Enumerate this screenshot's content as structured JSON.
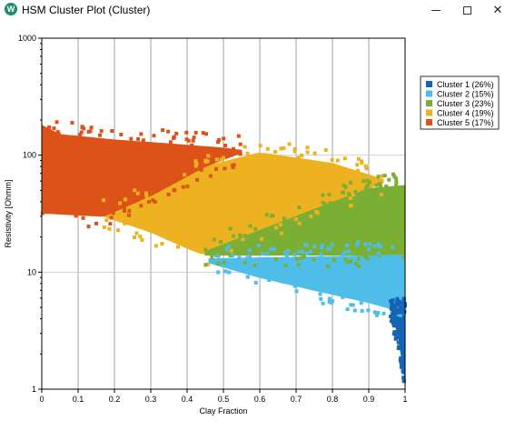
{
  "window": {
    "title": "HSM Cluster Plot (Cluster)",
    "icon_letter": "W",
    "minimize_icon": "minimize-icon",
    "maximize_icon": "maximize-icon",
    "close_glyph": "✕"
  },
  "chart_data": {
    "type": "scatter",
    "xlabel": "Clay Fraction",
    "ylabel": "Resistivity [Ohmm]",
    "xlim": [
      0,
      1
    ],
    "ylim": [
      1,
      1000
    ],
    "y_scale": "log",
    "grid": true,
    "legend_position": "right",
    "x_ticks": [
      "0",
      "0.1",
      "0.2",
      "0.3",
      "0.4",
      "0.5",
      "0.6",
      "0.7",
      "0.8",
      "0.9",
      "1"
    ],
    "y_ticks": [
      "1",
      "10",
      "100",
      "1000"
    ],
    "series": [
      {
        "name": "Cluster 1 (26%)",
        "color": "#1565b5",
        "region": {
          "x_from": 0.96,
          "x_to": 1.0,
          "lower": [
            [
              0.96,
              4.5
            ],
            [
              0.98,
              3.0
            ],
            [
              1.0,
              1.2
            ]
          ],
          "upper": [
            [
              0.96,
              4.5
            ],
            [
              1.0,
              4.5
            ]
          ]
        }
      },
      {
        "name": "Cluster 2 (15%)",
        "color": "#4fbde9",
        "region": {
          "x_from": 0.46,
          "x_to": 1.0,
          "lower": [
            [
              0.46,
              12
            ],
            [
              0.6,
              9
            ],
            [
              0.75,
              7
            ],
            [
              0.9,
              5.5
            ],
            [
              1.0,
              4.5
            ]
          ],
          "upper": [
            [
              0.46,
              13
            ],
            [
              1.0,
              14
            ]
          ]
        }
      },
      {
        "name": "Cluster 3 (23%)",
        "color": "#7aaf33",
        "region": {
          "x_from": 0.45,
          "x_to": 1.0,
          "lower": [
            [
              0.45,
              14
            ],
            [
              1.0,
              14
            ]
          ],
          "upper": [
            [
              0.45,
              15
            ],
            [
              0.7,
              30
            ],
            [
              0.9,
              52
            ],
            [
              1.0,
              55
            ]
          ]
        }
      },
      {
        "name": "Cluster 4 (19%)",
        "color": "#eeb221",
        "region": {
          "x_from": 0.17,
          "x_to": 0.94,
          "lower": [
            [
              0.17,
              30
            ],
            [
              0.3,
              22
            ],
            [
              0.4,
              16
            ],
            [
              0.45,
              14
            ],
            [
              0.7,
              30
            ],
            [
              0.9,
              52
            ],
            [
              0.94,
              58
            ]
          ],
          "upper": [
            [
              0.17,
              32
            ],
            [
              0.3,
              45
            ],
            [
              0.45,
              80
            ],
            [
              0.6,
              105
            ],
            [
              0.8,
              85
            ],
            [
              0.94,
              62
            ]
          ]
        }
      },
      {
        "name": "Cluster 5 (17%)",
        "color": "#dd5219",
        "region": {
          "x_from": 0.0,
          "x_to": 0.55,
          "lower": [
            [
              0.0,
              32
            ],
            [
              0.17,
              30
            ],
            [
              0.3,
              45
            ],
            [
              0.45,
              80
            ],
            [
              0.55,
              105
            ]
          ],
          "upper": [
            [
              0.0,
              180
            ],
            [
              0.05,
              150
            ],
            [
              0.2,
              135
            ],
            [
              0.35,
              125
            ],
            [
              0.5,
              115
            ],
            [
              0.55,
              110
            ]
          ]
        }
      }
    ]
  }
}
